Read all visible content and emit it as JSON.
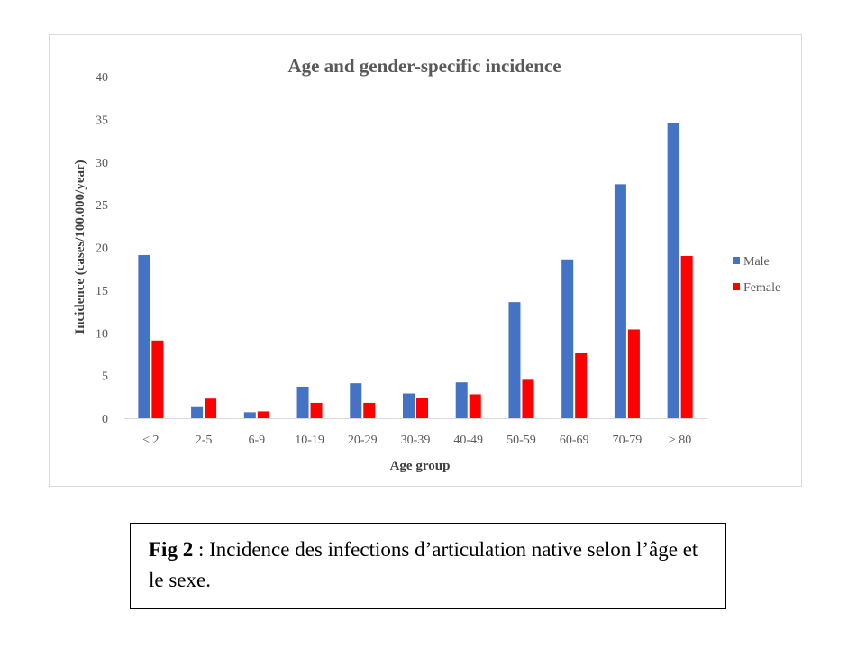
{
  "chart_data": {
    "type": "bar",
    "title": "Age and gender-specific incidence",
    "xlabel": "Age group",
    "ylabel": "Incidence (cases/100.000/year)",
    "categories": [
      "< 2",
      "2-5",
      "6-9",
      "10-19",
      "20-29",
      "30-39",
      "40-49",
      "50-59",
      "60-69",
      "70-79",
      "≥ 80"
    ],
    "series": [
      {
        "name": "Male",
        "color": "#4472c4",
        "values": [
          19.1,
          1.4,
          0.7,
          3.7,
          4.1,
          2.9,
          4.2,
          13.6,
          18.6,
          27.4,
          34.6
        ]
      },
      {
        "name": "Female",
        "color": "#ff0000",
        "values": [
          9.1,
          2.3,
          0.8,
          1.8,
          1.8,
          2.4,
          2.8,
          4.5,
          7.6,
          10.4,
          19.0
        ]
      }
    ],
    "ylim": [
      0,
      40
    ],
    "yticks": [
      0,
      5,
      10,
      15,
      20,
      25,
      30,
      35,
      40
    ],
    "grid": false,
    "legend_position": "right"
  },
  "caption": {
    "label": "Fig 2",
    "separator": " : ",
    "text": "Incidence des infections d’articulation native selon l’âge et le sexe."
  }
}
